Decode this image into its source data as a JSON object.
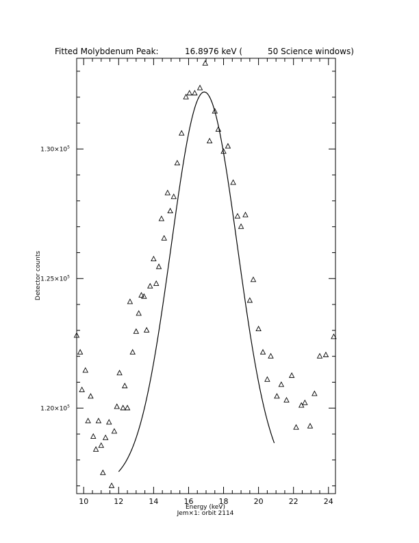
{
  "chart_data": {
    "type": "scatter",
    "title_parts": {
      "label": "Fitted Molybdenum Peak:",
      "value": "16.8976 keV (",
      "windows": "50 Science windows)"
    },
    "xlabel": "Energy (keV)",
    "ylabel": "Detector counts",
    "subtitle": "Jem×1: orbit 2114",
    "xlim": [
      9.6,
      24.4
    ],
    "ylim": [
      116700,
      133500
    ],
    "x_ticks": [
      10,
      12,
      14,
      16,
      18,
      20,
      22,
      24
    ],
    "x_tick_labels": [
      "10",
      "12",
      "14",
      "16",
      "18",
      "20",
      "22",
      "24"
    ],
    "y_ticks": [
      120000,
      125000,
      130000
    ],
    "y_tick_labels": [
      {
        "mantissa": "1.20×10",
        "exp": "5"
      },
      {
        "mantissa": "1.25×10",
        "exp": "5"
      },
      {
        "mantissa": "1.30×10",
        "exp": "5"
      }
    ],
    "grid": false,
    "series": [
      {
        "marker": "triangle",
        "points": [
          [
            9.6,
            122800
          ],
          [
            9.8,
            122150
          ],
          [
            9.9,
            120700
          ],
          [
            10.1,
            121450
          ],
          [
            10.25,
            119500
          ],
          [
            10.4,
            120450
          ],
          [
            10.55,
            118900
          ],
          [
            10.7,
            118400
          ],
          [
            10.85,
            119500
          ],
          [
            11.0,
            118550
          ],
          [
            11.1,
            117500
          ],
          [
            11.25,
            118850
          ],
          [
            11.45,
            119450
          ],
          [
            11.6,
            117000
          ],
          [
            11.75,
            119100
          ],
          [
            11.9,
            120050
          ],
          [
            12.05,
            121350
          ],
          [
            12.25,
            120000
          ],
          [
            12.35,
            120850
          ],
          [
            12.5,
            120000
          ],
          [
            12.65,
            124100
          ],
          [
            12.8,
            122150
          ],
          [
            13.0,
            122950
          ],
          [
            13.15,
            123650
          ],
          [
            13.3,
            124350
          ],
          [
            13.45,
            124300
          ],
          [
            13.6,
            123000
          ],
          [
            13.8,
            124700
          ],
          [
            14.0,
            125750
          ],
          [
            14.15,
            124800
          ],
          [
            14.3,
            125450
          ],
          [
            14.45,
            127300
          ],
          [
            14.6,
            126550
          ],
          [
            14.8,
            128300
          ],
          [
            14.95,
            127600
          ],
          [
            15.15,
            128150
          ],
          [
            15.35,
            129450
          ],
          [
            15.6,
            130600
          ],
          [
            15.85,
            132000
          ],
          [
            16.05,
            132150
          ],
          [
            16.35,
            132150
          ],
          [
            16.65,
            132350
          ],
          [
            16.95,
            133300
          ],
          [
            17.2,
            130300
          ],
          [
            17.5,
            131450
          ],
          [
            17.7,
            130750
          ],
          [
            18.0,
            129900
          ],
          [
            18.25,
            130100
          ],
          [
            18.55,
            128700
          ],
          [
            18.8,
            127400
          ],
          [
            19.0,
            127000
          ],
          [
            19.25,
            127450
          ],
          [
            19.5,
            124150
          ],
          [
            19.7,
            124950
          ],
          [
            20.0,
            123050
          ],
          [
            20.25,
            122150
          ],
          [
            20.5,
            121100
          ],
          [
            20.7,
            122000
          ],
          [
            21.05,
            120450
          ],
          [
            21.3,
            120900
          ],
          [
            21.6,
            120300
          ],
          [
            21.9,
            121250
          ],
          [
            22.15,
            119250
          ],
          [
            22.45,
            120100
          ],
          [
            22.65,
            120200
          ],
          [
            22.95,
            119300
          ],
          [
            23.2,
            120550
          ],
          [
            23.5,
            122000
          ],
          [
            23.85,
            122050
          ],
          [
            24.3,
            122750
          ]
        ]
      },
      {
        "marker": "line",
        "fit": {
          "type": "gaussian",
          "center": 16.8976,
          "sigma": 1.9,
          "baseline": 117000,
          "amplitude": 15200,
          "x_range": [
            12.0,
            20.9
          ]
        }
      }
    ]
  }
}
